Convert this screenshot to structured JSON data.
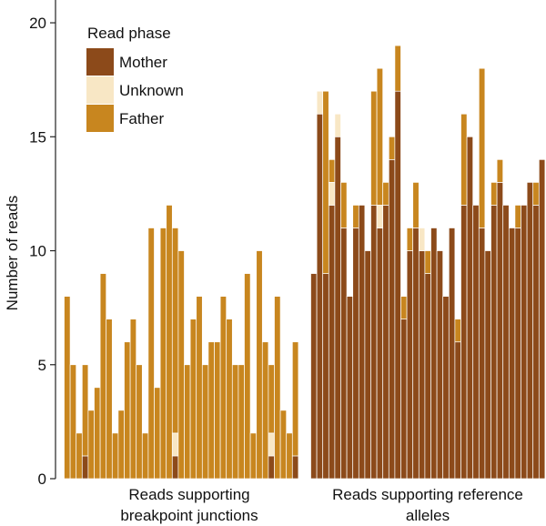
{
  "chart_data": {
    "type": "bar",
    "stacked": true,
    "ylabel": "Number of reads",
    "ylim": [
      0,
      21
    ],
    "yticks": [
      0,
      5,
      10,
      15,
      20
    ],
    "legend": {
      "title": "Read phase",
      "placement": "top-left",
      "entries": [
        "Mother",
        "Unknown",
        "Father"
      ]
    },
    "colors": {
      "Mother": "#8c4a1a",
      "Unknown": "#f8e7c5",
      "Father": "#c8861f"
    },
    "groups": [
      {
        "label": "Reads supporting breakpoint junctions",
        "label_lines": [
          "Reads supporting",
          "breakpoint junctions"
        ],
        "bars": [
          {
            "Mother": 0,
            "Unknown": 0,
            "Father": 8
          },
          {
            "Mother": 0,
            "Unknown": 0,
            "Father": 5
          },
          {
            "Mother": 0,
            "Unknown": 0,
            "Father": 2
          },
          {
            "Mother": 1,
            "Unknown": 0,
            "Father": 4
          },
          {
            "Mother": 0,
            "Unknown": 0,
            "Father": 3
          },
          {
            "Mother": 0,
            "Unknown": 0,
            "Father": 4
          },
          {
            "Mother": 0,
            "Unknown": 0,
            "Father": 9
          },
          {
            "Mother": 0,
            "Unknown": 0,
            "Father": 7
          },
          {
            "Mother": 0,
            "Unknown": 0,
            "Father": 2
          },
          {
            "Mother": 0,
            "Unknown": 0,
            "Father": 3
          },
          {
            "Mother": 0,
            "Unknown": 0,
            "Father": 6
          },
          {
            "Mother": 0,
            "Unknown": 0,
            "Father": 7
          },
          {
            "Mother": 0,
            "Unknown": 0,
            "Father": 5
          },
          {
            "Mother": 0,
            "Unknown": 0,
            "Father": 2
          },
          {
            "Mother": 0,
            "Unknown": 0,
            "Father": 11
          },
          {
            "Mother": 0,
            "Unknown": 0,
            "Father": 4
          },
          {
            "Mother": 0,
            "Unknown": 0,
            "Father": 11
          },
          {
            "Mother": 0,
            "Unknown": 0,
            "Father": 12
          },
          {
            "Mother": 1,
            "Unknown": 1,
            "Father": 9
          },
          {
            "Mother": 0,
            "Unknown": 0,
            "Father": 10
          },
          {
            "Mother": 0,
            "Unknown": 0,
            "Father": 5
          },
          {
            "Mother": 0,
            "Unknown": 0,
            "Father": 7
          },
          {
            "Mother": 0,
            "Unknown": 0,
            "Father": 8
          },
          {
            "Mother": 0,
            "Unknown": 0,
            "Father": 5
          },
          {
            "Mother": 0,
            "Unknown": 0,
            "Father": 6
          },
          {
            "Mother": 0,
            "Unknown": 0,
            "Father": 6
          },
          {
            "Mother": 0,
            "Unknown": 0,
            "Father": 8
          },
          {
            "Mother": 0,
            "Unknown": 0,
            "Father": 7
          },
          {
            "Mother": 0,
            "Unknown": 0,
            "Father": 5
          },
          {
            "Mother": 0,
            "Unknown": 0,
            "Father": 5
          },
          {
            "Mother": 0,
            "Unknown": 0,
            "Father": 9
          },
          {
            "Mother": 0,
            "Unknown": 0,
            "Father": 2
          },
          {
            "Mother": 0,
            "Unknown": 0,
            "Father": 10
          },
          {
            "Mother": 0,
            "Unknown": 0,
            "Father": 6
          },
          {
            "Mother": 1,
            "Unknown": 1,
            "Father": 3
          },
          {
            "Mother": 0,
            "Unknown": 0,
            "Father": 8
          },
          {
            "Mother": 0,
            "Unknown": 0,
            "Father": 3
          },
          {
            "Mother": 0,
            "Unknown": 0,
            "Father": 2
          },
          {
            "Mother": 1,
            "Unknown": 0,
            "Father": 5
          }
        ]
      },
      {
        "label": "Reads supporting reference alleles",
        "label_lines": [
          "Reads supporting reference",
          "alleles"
        ],
        "bars": [
          {
            "Mother": 9,
            "Unknown": 0,
            "Father": 0
          },
          {
            "Mother": 16,
            "Unknown": 1,
            "Father": 0
          },
          {
            "Mother": 9,
            "Unknown": 0,
            "Father": 8
          },
          {
            "Mother": 12,
            "Unknown": 1,
            "Father": 1
          },
          {
            "Mother": 15,
            "Unknown": 1,
            "Father": 0
          },
          {
            "Mother": 11,
            "Unknown": 0,
            "Father": 2
          },
          {
            "Mother": 8,
            "Unknown": 0,
            "Father": 0
          },
          {
            "Mother": 11,
            "Unknown": 0,
            "Father": 1
          },
          {
            "Mother": 12,
            "Unknown": 0,
            "Father": 0
          },
          {
            "Mother": 10,
            "Unknown": 0,
            "Father": 0
          },
          {
            "Mother": 12,
            "Unknown": 0,
            "Father": 5
          },
          {
            "Mother": 11,
            "Unknown": 1,
            "Father": 6
          },
          {
            "Mother": 12,
            "Unknown": 0,
            "Father": 1
          },
          {
            "Mother": 14,
            "Unknown": 0,
            "Father": 1
          },
          {
            "Mother": 17,
            "Unknown": 0,
            "Father": 2
          },
          {
            "Mother": 7,
            "Unknown": 0,
            "Father": 1
          },
          {
            "Mother": 10,
            "Unknown": 0,
            "Father": 1
          },
          {
            "Mother": 11,
            "Unknown": 0,
            "Father": 2
          },
          {
            "Mother": 10,
            "Unknown": 1,
            "Father": 0
          },
          {
            "Mother": 9,
            "Unknown": 0,
            "Father": 1
          },
          {
            "Mother": 11,
            "Unknown": 0,
            "Father": 0
          },
          {
            "Mother": 10,
            "Unknown": 0,
            "Father": 0
          },
          {
            "Mother": 8,
            "Unknown": 0,
            "Father": 0
          },
          {
            "Mother": 11,
            "Unknown": 0,
            "Father": 0
          },
          {
            "Mother": 6,
            "Unknown": 0,
            "Father": 1
          },
          {
            "Mother": 12,
            "Unknown": 0,
            "Father": 4
          },
          {
            "Mother": 15,
            "Unknown": 0,
            "Father": 0
          },
          {
            "Mother": 12,
            "Unknown": 0,
            "Father": 0
          },
          {
            "Mother": 11,
            "Unknown": 0,
            "Father": 7
          },
          {
            "Mother": 10,
            "Unknown": 0,
            "Father": 0
          },
          {
            "Mother": 12,
            "Unknown": 0,
            "Father": 1
          },
          {
            "Mother": 13,
            "Unknown": 0,
            "Father": 1
          },
          {
            "Mother": 12,
            "Unknown": 0,
            "Father": 0
          },
          {
            "Mother": 11,
            "Unknown": 0,
            "Father": 0
          },
          {
            "Mother": 11,
            "Unknown": 0,
            "Father": 1
          },
          {
            "Mother": 12,
            "Unknown": 0,
            "Father": 0
          },
          {
            "Mother": 13,
            "Unknown": 0,
            "Father": 0
          },
          {
            "Mother": 12,
            "Unknown": 0,
            "Father": 1
          },
          {
            "Mother": 14,
            "Unknown": 0,
            "Father": 0
          }
        ]
      }
    ]
  }
}
